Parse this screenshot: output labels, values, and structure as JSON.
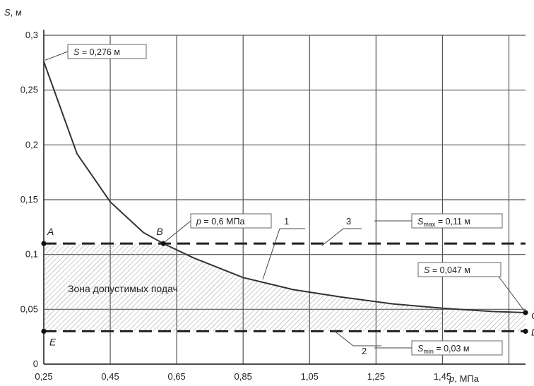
{
  "chart_data": {
    "type": "line",
    "xlabel": {
      "var": "p",
      "unit": ", МПа"
    },
    "ylabel": {
      "var": "S",
      "unit": ", м"
    },
    "xlim": [
      0.25,
      1.7
    ],
    "ylim": [
      0,
      0.3
    ],
    "x_ticks": [
      0.25,
      0.45,
      0.65,
      0.85,
      1.05,
      1.25,
      1.45
    ],
    "x_tick_labels": [
      "0,25",
      "0,45",
      "0,65",
      "0,85",
      "1,05",
      "1,25",
      "1,45"
    ],
    "x_grid": [
      0.25,
      0.45,
      0.65,
      0.85,
      1.05,
      1.25,
      1.45,
      1.65
    ],
    "y_ticks": [
      0,
      0.05,
      0.1,
      0.15,
      0.2,
      0.25,
      0.3
    ],
    "y_tick_labels": [
      "0",
      "0,05",
      "0,1",
      "0,15",
      "0,2",
      "0,25",
      "0,3"
    ],
    "grid": true,
    "curve": {
      "x": [
        0.25,
        0.35,
        0.45,
        0.55,
        0.61,
        0.7,
        0.85,
        1.0,
        1.15,
        1.3,
        1.45,
        1.6,
        1.7
      ],
      "y": [
        0.276,
        0.192,
        0.148,
        0.12,
        0.11,
        0.097,
        0.079,
        0.068,
        0.061,
        0.055,
        0.051,
        0.048,
        0.047
      ]
    },
    "s_max": 0.11,
    "s_min": 0.03,
    "points": [
      {
        "id": "A",
        "label": "A",
        "x": 0.25,
        "y": 0.11
      },
      {
        "id": "B",
        "label": "B",
        "x": 0.61,
        "y": 0.11
      },
      {
        "id": "C",
        "label": "C",
        "x": 1.7,
        "y": 0.047
      },
      {
        "id": "D",
        "label": "D",
        "x": 1.7,
        "y": 0.03
      },
      {
        "id": "E",
        "label": "E",
        "x": 0.25,
        "y": 0.03
      }
    ],
    "callouts": {
      "s_top": {
        "var": "S",
        "text": " = 0,276 м"
      },
      "p_b": {
        "var": "p",
        "text": " = 0,6 МПа"
      },
      "s_max": {
        "var": "S",
        "sub": "max",
        "text": " = 0,11 м"
      },
      "s_end": {
        "var": "S",
        "text": " = 0,047 м"
      },
      "s_min": {
        "var": "S",
        "sub": "min",
        "text": " = 0,03 м"
      }
    },
    "line_numbers": {
      "curve": "1",
      "s_min": "2",
      "s_max": "3"
    },
    "zone_label": "Зона допустимых подач"
  }
}
